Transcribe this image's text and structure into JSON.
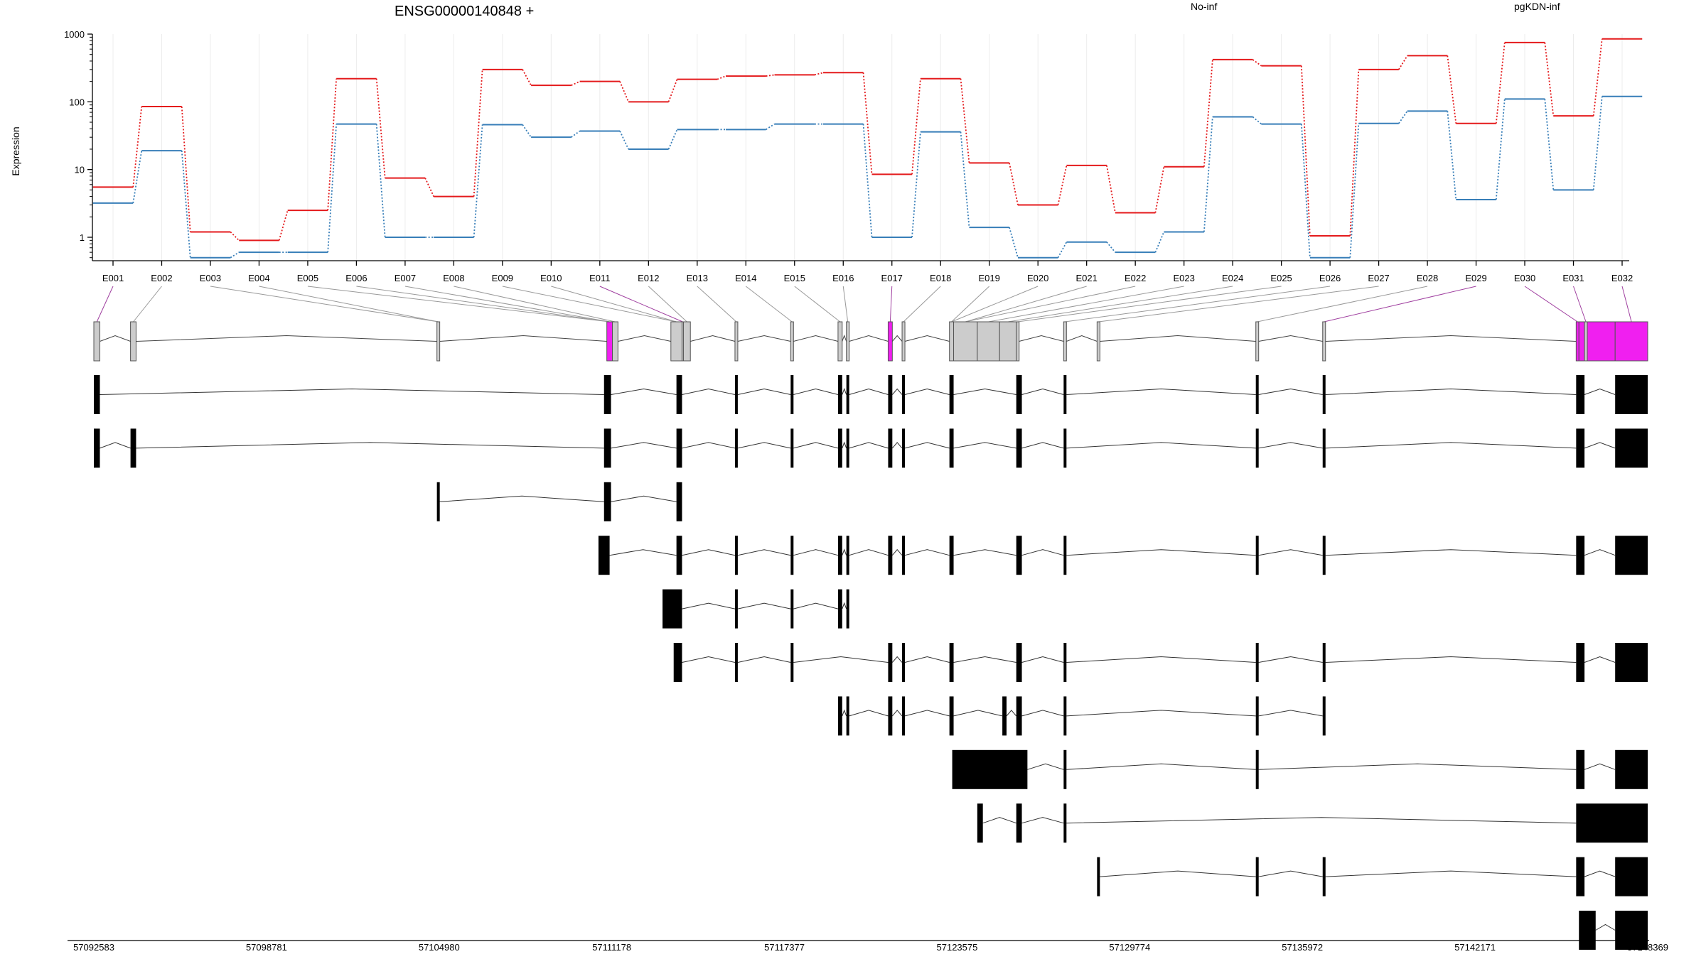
{
  "chart_data": {
    "type": "line",
    "title": "ENSG00000140848 +",
    "ylabel": "Expression",
    "yscale": "log",
    "ylim": [
      0.5,
      1000
    ],
    "y_ticks": [
      "1000",
      "100",
      "10",
      "1"
    ],
    "grid": "vertical",
    "legend_placement": "top",
    "categories": [
      "E001",
      "E002",
      "E003",
      "E004",
      "E005",
      "E006",
      "E007",
      "E008",
      "E009",
      "E010",
      "E011",
      "E012",
      "E013",
      "E014",
      "E015",
      "E016",
      "E017",
      "E018",
      "E019",
      "E020",
      "E021",
      "E022",
      "E023",
      "E024",
      "E025",
      "E026",
      "E027",
      "E028",
      "E029",
      "E030",
      "E031",
      "E032"
    ],
    "series": [
      {
        "name": "No-inf",
        "color": "#e41a1c",
        "values": [
          5.5,
          85,
          1.2,
          0.9,
          2.5,
          220,
          7.5,
          4,
          300,
          175,
          200,
          100,
          215,
          240,
          250,
          270,
          8.5,
          220,
          12.5,
          3,
          11.5,
          2.3,
          11,
          420,
          340,
          1.05,
          300,
          480,
          48,
          750,
          62,
          850
        ]
      },
      {
        "name": "pgKDN-inf",
        "color": "#377eb8",
        "values": [
          3.2,
          19,
          0.5,
          0.6,
          0.6,
          47,
          1.0,
          1.0,
          46,
          30,
          37,
          20,
          39,
          39,
          47,
          47,
          1.0,
          36,
          1.4,
          0.5,
          0.85,
          0.6,
          1.2,
          60,
          47,
          0.5,
          48,
          73,
          3.6,
          110,
          5,
          120
        ]
      }
    ],
    "highlighted_exons": [
      "E001",
      "E011",
      "E017",
      "E029",
      "E030",
      "E031",
      "E032"
    ],
    "highlight_color": "#f01ff0",
    "genomic_range": [
      57092583,
      57148369
    ],
    "genomic_ticks": [
      "57092583",
      "57098781",
      "57104980",
      "57111178",
      "57117377",
      "57123575",
      "57129774",
      "57135972",
      "57142171",
      "57148369"
    ],
    "exon_bins": [
      [
        57092583,
        57092800
      ],
      [
        57093900,
        57094100
      ],
      [
        57104900,
        57105000
      ],
      [
        57111000,
        57111200
      ],
      [
        57111200,
        57111400
      ],
      [
        57113300,
        57113700
      ],
      [
        57113700,
        57113750
      ],
      [
        57113750,
        57114000
      ],
      [
        57115600,
        57115700
      ],
      [
        57117600,
        57117700
      ],
      [
        57119300,
        57119450
      ],
      [
        57119600,
        57119700
      ],
      [
        57121100,
        57121250
      ],
      [
        57121600,
        57121700
      ],
      [
        57123300,
        57123450
      ],
      [
        57123450,
        57124300
      ],
      [
        57124300,
        57125100
      ],
      [
        57125100,
        57125700
      ],
      [
        57125700,
        57125800
      ],
      [
        57127400,
        57127500
      ],
      [
        57128600,
        57128700
      ],
      [
        57134300,
        57134400
      ],
      [
        57136700,
        57136800
      ],
      [
        57145800,
        57145900
      ],
      [
        57145900,
        57146100
      ],
      [
        57146100,
        57146200
      ],
      [
        57146200,
        57147200
      ],
      [
        57147200,
        57148369
      ]
    ],
    "bin_highlight": [
      false,
      false,
      false,
      true,
      false,
      false,
      false,
      false,
      false,
      false,
      false,
      false,
      true,
      false,
      false,
      false,
      false,
      false,
      false,
      false,
      false,
      false,
      false,
      true,
      true,
      false,
      true,
      true
    ],
    "exon_to_bin": [
      0,
      1,
      2,
      2,
      3,
      3,
      3,
      4,
      5,
      5,
      6,
      7,
      8,
      9,
      10,
      11,
      12,
      13,
      14,
      14,
      15,
      15,
      16,
      17,
      18,
      19,
      20,
      21,
      22,
      23,
      25,
      27
    ],
    "transcripts": [
      [
        [
          57092583,
          57092800
        ],
        [
          57110900,
          57111150
        ],
        [
          57113500,
          57113700
        ],
        [
          57115600,
          57115700
        ],
        [
          57117600,
          57117700
        ],
        [
          57119300,
          57119450
        ],
        [
          57119600,
          57119700
        ],
        [
          57121100,
          57121250
        ],
        [
          57121600,
          57121700
        ],
        [
          57123300,
          57123450
        ],
        [
          57125700,
          57125900
        ],
        [
          57127400,
          57127500
        ],
        [
          57134300,
          57134400
        ],
        [
          57136700,
          57136800
        ],
        [
          57145800,
          57146100
        ],
        [
          57147200,
          57148369
        ]
      ],
      [
        [
          57092583,
          57092800
        ],
        [
          57093900,
          57094100
        ],
        [
          57110900,
          57111150
        ],
        [
          57113500,
          57113700
        ],
        [
          57115600,
          57115700
        ],
        [
          57117600,
          57117700
        ],
        [
          57119300,
          57119450
        ],
        [
          57119600,
          57119700
        ],
        [
          57121100,
          57121250
        ],
        [
          57121600,
          57121700
        ],
        [
          57123300,
          57123450
        ],
        [
          57125700,
          57125900
        ],
        [
          57127400,
          57127500
        ],
        [
          57134300,
          57134400
        ],
        [
          57136700,
          57136800
        ],
        [
          57145800,
          57146100
        ],
        [
          57147200,
          57148369
        ]
      ],
      [
        [
          57104900,
          57105000
        ],
        [
          57110900,
          57111150
        ],
        [
          57113500,
          57113700
        ]
      ],
      [
        [
          57110700,
          57111100
        ],
        [
          57113500,
          57113700
        ],
        [
          57115600,
          57115700
        ],
        [
          57117600,
          57117700
        ],
        [
          57119300,
          57119450
        ],
        [
          57119600,
          57119700
        ],
        [
          57121100,
          57121250
        ],
        [
          57121600,
          57121700
        ],
        [
          57123300,
          57123450
        ],
        [
          57125700,
          57125900
        ],
        [
          57127400,
          57127500
        ],
        [
          57134300,
          57134400
        ],
        [
          57136700,
          57136800
        ],
        [
          57145800,
          57146100
        ],
        [
          57147200,
          57148369
        ]
      ],
      [
        [
          57113000,
          57113700
        ],
        [
          57115600,
          57115700
        ],
        [
          57117600,
          57117700
        ],
        [
          57119300,
          57119450
        ],
        [
          57119600,
          57119700
        ]
      ],
      [
        [
          57113400,
          57113700
        ],
        [
          57115600,
          57115700
        ],
        [
          57117600,
          57117700
        ],
        [
          57121100,
          57121250
        ],
        [
          57121600,
          57121700
        ],
        [
          57123300,
          57123450
        ],
        [
          57125700,
          57125900
        ],
        [
          57127400,
          57127500
        ],
        [
          57134300,
          57134400
        ],
        [
          57136700,
          57136800
        ],
        [
          57145800,
          57146100
        ],
        [
          57147200,
          57148369
        ]
      ],
      [
        [
          57119300,
          57119450
        ],
        [
          57119600,
          57119700
        ],
        [
          57121100,
          57121250
        ],
        [
          57121600,
          57121700
        ],
        [
          57123300,
          57123450
        ],
        [
          57125200,
          57125350
        ],
        [
          57125700,
          57125900
        ],
        [
          57127400,
          57127500
        ],
        [
          57134300,
          57134400
        ],
        [
          57136700,
          57136800
        ]
      ],
      [
        [
          57123400,
          57126100
        ],
        [
          57127400,
          57127500
        ],
        [
          57134300,
          57134400
        ],
        [
          57145800,
          57146100
        ],
        [
          57147200,
          57148369
        ]
      ],
      [
        [
          57124300,
          57124500
        ],
        [
          57125700,
          57125900
        ],
        [
          57127400,
          57127500
        ],
        [
          57145800,
          57148369
        ]
      ],
      [
        [
          57128600,
          57128700
        ],
        [
          57134300,
          57134400
        ],
        [
          57136700,
          57136800
        ],
        [
          57145800,
          57146100
        ],
        [
          57147200,
          57148369
        ]
      ],
      [
        [
          57145900,
          57146500
        ],
        [
          57147200,
          57148369
        ]
      ]
    ]
  }
}
